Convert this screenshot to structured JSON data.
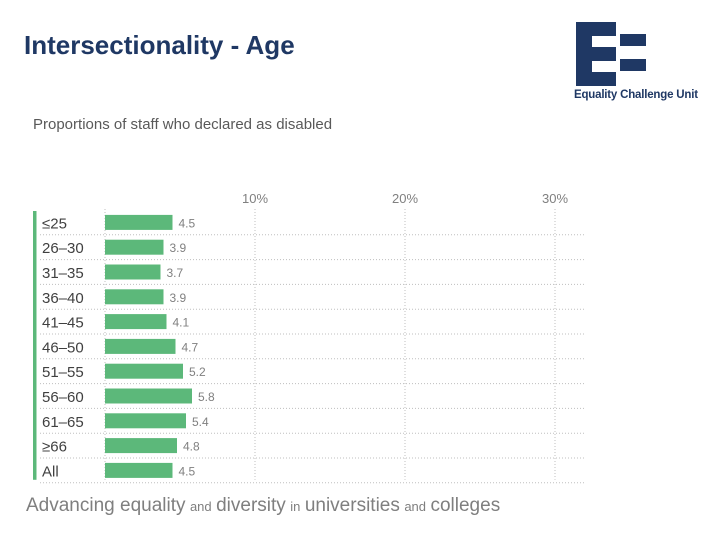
{
  "slide": {
    "title": "Intersectionality - Age"
  },
  "logo": {
    "text": "Equality Challenge Unit",
    "color": "#1f3864"
  },
  "footer": {
    "part1": "Advancing equality",
    "part2": "and",
    "part3": "diversity",
    "part4": "in",
    "part5": "universities",
    "part6": "and",
    "part7": "colleges"
  },
  "chart_data": {
    "type": "bar",
    "orientation": "horizontal",
    "title": "Proportions of staff who declared as disabled",
    "categories": [
      "≤25",
      "26–30",
      "31–35",
      "36–40",
      "41–45",
      "46–50",
      "51–55",
      "56–60",
      "61–65",
      "≥66",
      "All"
    ],
    "values": [
      4.5,
      3.9,
      3.7,
      3.9,
      4.1,
      4.7,
      5.2,
      5.8,
      5.4,
      4.8,
      4.5
    ],
    "value_labels": [
      "4.5",
      "3.9",
      "3.7",
      "3.9",
      "4.1",
      "4.7",
      "5.2",
      "5.8",
      "5.4",
      "4.8",
      "4.5"
    ],
    "xlim": [
      0,
      32
    ],
    "xticks": [
      10,
      20,
      30
    ],
    "xtick_labels": [
      "10%",
      "20%",
      "30%"
    ],
    "xaxis_position": "top",
    "grid": true,
    "bar_color": "#5cb87a",
    "accent_color": "#5cb87a"
  }
}
